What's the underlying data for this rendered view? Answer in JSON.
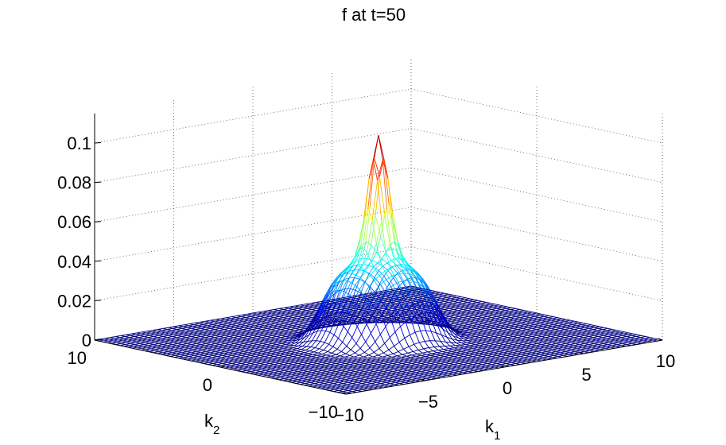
{
  "chart_data": {
    "type": "surface-mesh",
    "title": "f at t=50",
    "xlabel": "k",
    "xlabel_sub": "1",
    "ylabel": "k",
    "ylabel_sub": "2",
    "zlabel": "",
    "xlim": [
      -10,
      10
    ],
    "ylim": [
      -10,
      10
    ],
    "zlim": [
      0,
      0.115
    ],
    "x_ticks": [
      -10,
      -5,
      0,
      5,
      10
    ],
    "x_tick_labels": [
      "−10",
      "−5",
      "0",
      "5",
      "10"
    ],
    "y_ticks": [
      -10,
      0,
      10
    ],
    "y_tick_labels": [
      "−10",
      "0",
      "10"
    ],
    "z_ticks": [
      0,
      0.02,
      0.04,
      0.06,
      0.08,
      0.1
    ],
    "z_tick_labels": [
      "0",
      "0.02",
      "0.04",
      "0.06",
      "0.08",
      "0.1"
    ],
    "grid": true,
    "colormap": "jet",
    "surface": {
      "peak_value": 0.104,
      "peak_location": [
        0,
        0
      ],
      "plateau_value": 0.038,
      "base_value": 0,
      "shape": "sharp central peak on a broad plateau, flat at zero beyond |k| > 5"
    },
    "colors": {
      "low": "#00008f",
      "mid_low": "#00c8ff",
      "mid": "#80ff80",
      "mid_high": "#ffd000",
      "high": "#c00000",
      "grid": "#555555"
    }
  }
}
